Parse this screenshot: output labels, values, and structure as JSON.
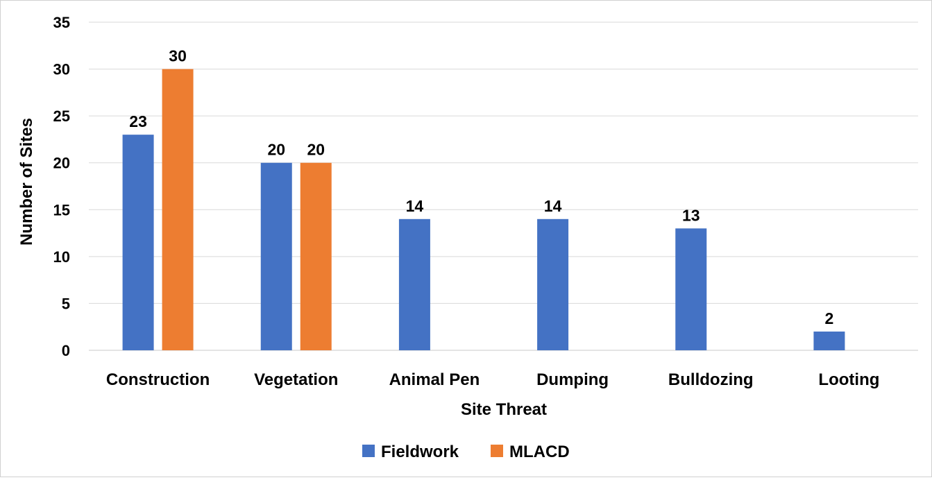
{
  "chart_data": {
    "type": "bar",
    "title": "",
    "xlabel": "Site Threat",
    "ylabel": "Number of Sites",
    "ylim": [
      0,
      35
    ],
    "yticks": [
      0,
      5,
      10,
      15,
      20,
      25,
      30,
      35
    ],
    "grid": true,
    "legend_position": "bottom",
    "categories": [
      "Construction",
      "Vegetation",
      "Animal Pen",
      "Dumping",
      "Bulldozing",
      "Looting"
    ],
    "series": [
      {
        "name": "Fieldwork",
        "color": "#4472C4",
        "values": [
          23,
          20,
          14,
          14,
          13,
          2
        ]
      },
      {
        "name": "MLACD",
        "color": "#ED7D31",
        "values": [
          30,
          20,
          null,
          null,
          null,
          null
        ]
      }
    ]
  }
}
